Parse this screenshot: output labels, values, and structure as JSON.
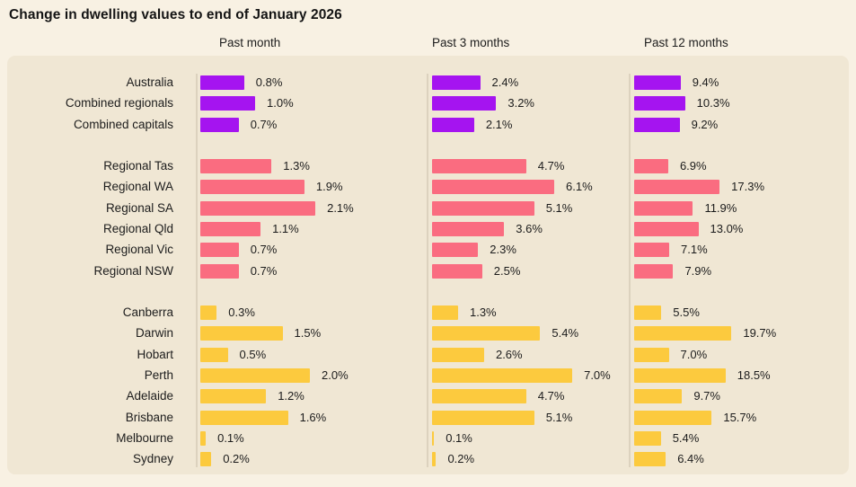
{
  "title": "Change in dwelling values to end of January 2026",
  "columns": [
    {
      "label": "Past month"
    },
    {
      "label": "Past 3 months"
    },
    {
      "label": "Past 12 months"
    }
  ],
  "colors": {
    "background": "#F8F1E3",
    "panel": "#F0E7D4",
    "axis_line": "#DCD2BE",
    "text": "#1C1C1C",
    "national_purple": "#A514F0",
    "regional_pink": "#FA6C80",
    "capitals_yellow": "#FCCA3E"
  },
  "chart_data": {
    "type": "bar",
    "orientation": "horizontal",
    "value_suffix": "%",
    "title": "Change in dwelling values to end of January 2026",
    "series_columns": [
      "Past month",
      "Past 3 months",
      "Past 12 months"
    ],
    "legend": "none",
    "grid": "zero-axis-line-per-column",
    "column_value_ranges": [
      [
        0,
        2.1
      ],
      [
        0,
        7.0
      ],
      [
        0,
        19.7
      ]
    ],
    "groups": [
      {
        "name": "national-aggregates",
        "color": "#A514F0",
        "rows": [
          {
            "label": "Australia",
            "values": [
              0.8,
              2.4,
              9.4
            ]
          },
          {
            "label": "Combined regionals",
            "values": [
              1.0,
              3.2,
              10.3
            ]
          },
          {
            "label": "Combined capitals",
            "values": [
              0.7,
              2.1,
              9.2
            ]
          }
        ]
      },
      {
        "name": "regional-markets",
        "color": "#FA6C80",
        "rows": [
          {
            "label": "Regional Tas",
            "values": [
              1.3,
              4.7,
              6.9
            ]
          },
          {
            "label": "Regional WA",
            "values": [
              1.9,
              6.1,
              17.3
            ]
          },
          {
            "label": "Regional SA",
            "values": [
              2.1,
              5.1,
              11.9
            ]
          },
          {
            "label": "Regional Qld",
            "values": [
              1.1,
              3.6,
              13.0
            ]
          },
          {
            "label": "Regional Vic",
            "values": [
              0.7,
              2.3,
              7.1
            ]
          },
          {
            "label": "Regional NSW",
            "values": [
              0.7,
              2.5,
              7.9
            ]
          }
        ]
      },
      {
        "name": "capital-cities",
        "color": "#FCCA3E",
        "rows": [
          {
            "label": "Canberra",
            "values": [
              0.3,
              1.3,
              5.5
            ]
          },
          {
            "label": "Darwin",
            "values": [
              1.5,
              5.4,
              19.7
            ]
          },
          {
            "label": "Hobart",
            "values": [
              0.5,
              2.6,
              7.0
            ]
          },
          {
            "label": "Perth",
            "values": [
              2.0,
              7.0,
              18.5
            ]
          },
          {
            "label": "Adelaide",
            "values": [
              1.2,
              4.7,
              9.7
            ]
          },
          {
            "label": "Brisbane",
            "values": [
              1.6,
              5.1,
              15.7
            ]
          },
          {
            "label": "Melbourne",
            "values": [
              0.1,
              0.1,
              5.4
            ]
          },
          {
            "label": "Sydney",
            "values": [
              0.2,
              0.2,
              6.4
            ]
          }
        ]
      }
    ]
  }
}
